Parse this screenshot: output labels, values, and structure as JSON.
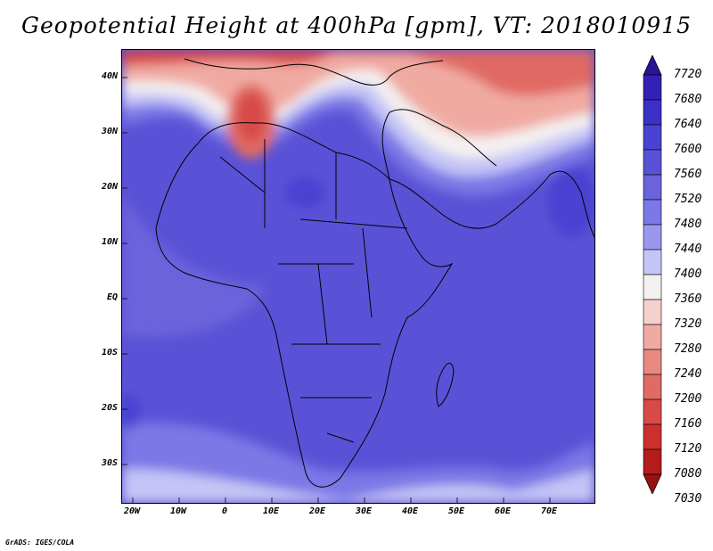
{
  "title": "Geopotential Height at 400hPa [gpm], VT: 2018010915",
  "credit": "GrADS: IGES/COLA",
  "map": {
    "lat_ticks": [
      "40N",
      "30N",
      "20N",
      "10N",
      "EQ",
      "10S",
      "20S",
      "30S"
    ],
    "lon_ticks": [
      "20W",
      "10W",
      "0",
      "10E",
      "20E",
      "30E",
      "40E",
      "50E",
      "60E",
      "70E"
    ]
  },
  "colorbar": {
    "levels": [
      "7720",
      "7680",
      "7640",
      "7600",
      "7560",
      "7520",
      "7480",
      "7440",
      "7400",
      "7360",
      "7320",
      "7280",
      "7240",
      "7200",
      "7160",
      "7120",
      "7080",
      "7030"
    ],
    "colors": [
      "#2a1496",
      "#3221b4",
      "#3b30c8",
      "#4a42d2",
      "#5a52d6",
      "#6a63dc",
      "#7c78e6",
      "#9a98ee",
      "#c4c4f6",
      "#f4f0f0",
      "#f6d0cc",
      "#f0aaa2",
      "#e88a82",
      "#e06a64",
      "#d84a48",
      "#cc302e",
      "#b41c1c",
      "#9a1010"
    ]
  }
}
